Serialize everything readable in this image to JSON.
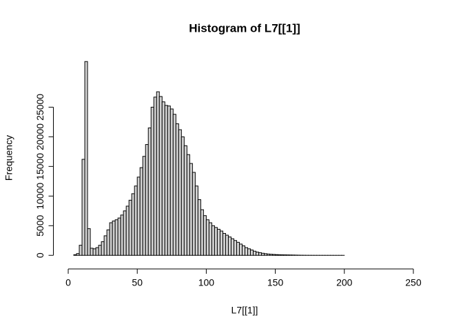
{
  "chart_data": {
    "type": "histogram",
    "title": "Histogram of L7[[1]]",
    "x_label": "L7[[1]]",
    "y_label": "Frequency",
    "color": "#d3d3d3",
    "bins": [
      0,
      2,
      4,
      6,
      8,
      10,
      12,
      14,
      16,
      18,
      20,
      22,
      24,
      26,
      28,
      30,
      32,
      34,
      36,
      38,
      40,
      42,
      44,
      46,
      48,
      50,
      52,
      54,
      56,
      58,
      60,
      62,
      64,
      66,
      68,
      70,
      72,
      74,
      76,
      78,
      80,
      82,
      84,
      86,
      88,
      90,
      92,
      94,
      96,
      98,
      100,
      102,
      104,
      106,
      108,
      110,
      112,
      114,
      116,
      118,
      120,
      122,
      124,
      126,
      128,
      130,
      132,
      134,
      136,
      138,
      140,
      142,
      144,
      146,
      148,
      150,
      152,
      154,
      156,
      158,
      160,
      162,
      164,
      166,
      168,
      170,
      172,
      174,
      176,
      178,
      180,
      182,
      184,
      186,
      188,
      190,
      192,
      194,
      196,
      198,
      200,
      202,
      204,
      206,
      208,
      210,
      212,
      214,
      216,
      218,
      220,
      222,
      224,
      226,
      228,
      230,
      232,
      234,
      236,
      238,
      240,
      242,
      244,
      246,
      248,
      250,
      252,
      254,
      256
    ],
    "values": [
      0,
      0,
      100,
      300,
      1700,
      16200,
      32700,
      4500,
      1200,
      1100,
      1300,
      1700,
      2300,
      3300,
      4300,
      5500,
      5800,
      6000,
      6300,
      6800,
      7500,
      8300,
      9300,
      10400,
      11700,
      13200,
      14800,
      16700,
      18700,
      21500,
      25000,
      26700,
      27600,
      26800,
      25900,
      25300,
      25200,
      24700,
      23800,
      22200,
      21200,
      20000,
      18500,
      17000,
      15500,
      14000,
      11700,
      9400,
      7700,
      6700,
      6000,
      5500,
      5000,
      4700,
      4400,
      4100,
      3700,
      3400,
      3100,
      2800,
      2500,
      2200,
      1900,
      1600,
      1300,
      1100,
      900,
      700,
      550,
      450,
      350,
      280,
      220,
      180,
      150,
      120,
      100,
      90,
      80,
      70,
      60,
      50,
      40,
      30,
      20,
      15,
      10,
      8,
      6,
      5,
      4,
      3,
      3,
      2,
      2,
      2,
      1,
      1,
      1,
      1,
      0,
      0,
      0,
      0,
      0,
      0,
      0,
      0,
      0,
      0,
      0,
      0,
      0,
      0,
      0,
      0,
      0,
      0,
      0,
      0,
      0,
      0,
      0,
      0,
      0,
      0,
      0,
      0
    ],
    "xlim": [
      -10.24,
      266.24
    ],
    "xticks": [
      0,
      50,
      100,
      150,
      200,
      250
    ],
    "ylim": [
      -1308,
      34008
    ],
    "yticks": [
      0,
      5000,
      10000,
      15000,
      20000,
      25000
    ]
  }
}
